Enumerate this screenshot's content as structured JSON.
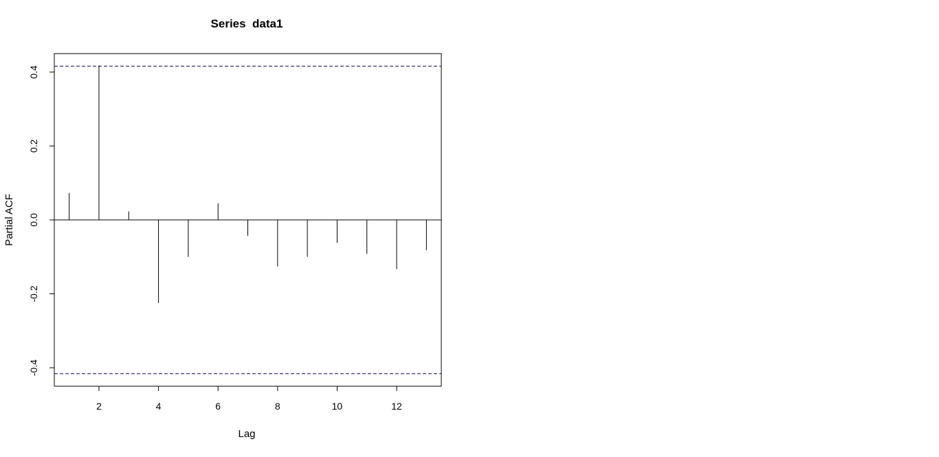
{
  "chart_data": {
    "type": "bar",
    "title": "Series  data1",
    "xlabel": "Lag",
    "ylabel": "Partial ACF",
    "x": [
      1,
      2,
      3,
      4,
      5,
      6,
      7,
      8,
      9,
      10,
      11,
      12,
      13
    ],
    "values": [
      0.073,
      0.418,
      0.023,
      -0.225,
      -0.1,
      0.045,
      -0.043,
      -0.126,
      -0.1,
      -0.062,
      -0.092,
      -0.133,
      -0.082
    ],
    "xlim": [
      0.5,
      13.5
    ],
    "ylim": [
      -0.45,
      0.45
    ],
    "xticks": [
      2,
      4,
      6,
      8,
      10,
      12
    ],
    "xtick_labels": [
      "2",
      "4",
      "6",
      "8",
      "10",
      "12"
    ],
    "yticks": [
      -0.4,
      -0.2,
      0.0,
      0.2,
      0.4
    ],
    "ytick_labels": [
      "-0.4",
      "-0.2",
      "0.0",
      "0.2",
      "0.4"
    ],
    "confidence_bound": 0.416,
    "grid": false,
    "colors": {
      "bars": "#000000",
      "confidence_line": "#00008b",
      "zero_line": "#000000"
    }
  }
}
